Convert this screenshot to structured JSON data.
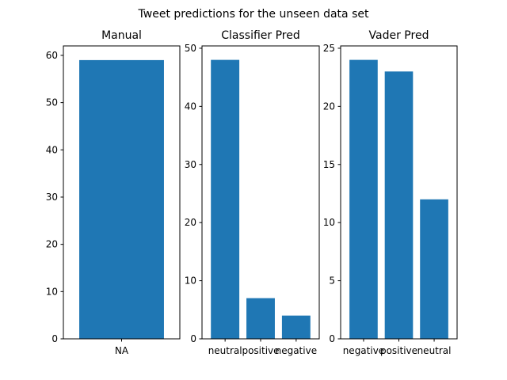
{
  "suptitle": "Tweet predictions for the unseen data set",
  "bar_color": "#1f77b4",
  "chart_data": [
    {
      "type": "bar",
      "title": "Manual",
      "categories": [
        "NA"
      ],
      "values": [
        59
      ],
      "ylim": [
        0,
        62
      ],
      "yticks": [
        0,
        10,
        20,
        30,
        40,
        50,
        60
      ],
      "grid": false
    },
    {
      "type": "bar",
      "title": "Classifier Pred",
      "categories": [
        "neutral",
        "positive",
        "negative"
      ],
      "values": [
        48,
        7,
        4
      ],
      "ylim": [
        0,
        50.4
      ],
      "yticks": [
        0,
        10,
        20,
        30,
        40,
        50
      ],
      "grid": false
    },
    {
      "type": "bar",
      "title": "Vader Pred",
      "categories": [
        "negative",
        "positive",
        "neutral"
      ],
      "values": [
        24,
        23,
        12
      ],
      "ylim": [
        0,
        25.2
      ],
      "yticks": [
        0,
        5,
        10,
        15,
        20,
        25
      ],
      "grid": false
    }
  ]
}
